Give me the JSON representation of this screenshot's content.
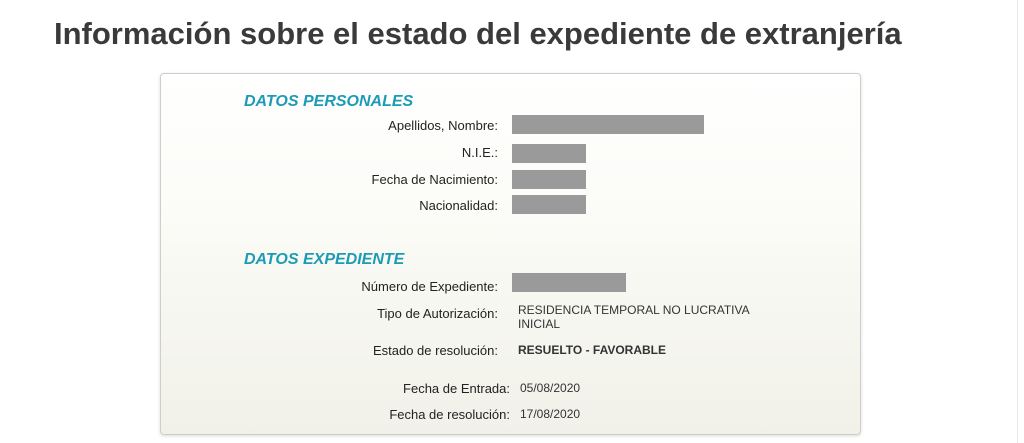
{
  "page": {
    "title": "Información sobre el estado del expediente de extranjería"
  },
  "personal": {
    "heading": "DATOS PERSONALES",
    "name_label": "Apellidos, Nombre:",
    "nie_label": "N.I.E.:",
    "birth_label": "Fecha de Nacimiento:",
    "nationality_label": "Nacionalidad:"
  },
  "expediente": {
    "heading": "DATOS EXPEDIENTE",
    "number_label": "Número de Expediente:",
    "type_label": "Tipo de Autorización:",
    "type_value": "RESIDENCIA TEMPORAL NO LUCRATIVA INICIAL",
    "status_label": "Estado de resolución:",
    "status_value": "RESUELTO - FAVORABLE",
    "entry_label": "Fecha de Entrada:",
    "entry_value": "05/08/2020",
    "resolution_label": "Fecha de resolución:",
    "resolution_value": "17/08/2020"
  },
  "colors": {
    "heading": "#1b9bb5",
    "title": "#3a3a3a",
    "redaction": "#9a9a9a"
  }
}
